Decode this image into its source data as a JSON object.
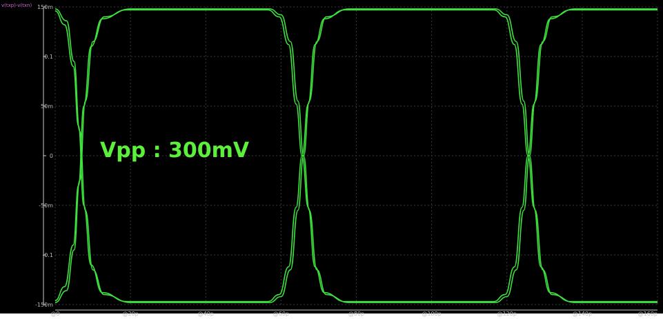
{
  "chart_data": {
    "type": "line",
    "title": "",
    "ylabel": "v(txp)-v(txn)",
    "xlabel": "",
    "xlim": [
      0,
      160
    ],
    "ylim": [
      -150,
      150
    ],
    "grid": true,
    "trace_color": "#3ee13e",
    "annotation": {
      "text": "Vpp : 300mV",
      "color": "#5cf03c"
    },
    "y_ticks": [
      {
        "value": 150,
        "label": "150m"
      },
      {
        "value": 100,
        "label": "0.1"
      },
      {
        "value": 50,
        "label": "50m"
      },
      {
        "value": 0,
        "label": "0"
      },
      {
        "value": -50,
        "label": "-50m"
      },
      {
        "value": -100,
        "label": "-0.1"
      },
      {
        "value": -150,
        "label": "-150m"
      }
    ],
    "x_ticks": [
      {
        "value": 0,
        "label": "@0"
      },
      {
        "value": 20,
        "label": "@20p"
      },
      {
        "value": 40,
        "label": "@40p"
      },
      {
        "value": 60,
        "label": "@60p"
      },
      {
        "value": 80,
        "label": "@80p"
      },
      {
        "value": 100,
        "label": "@100p"
      },
      {
        "value": 120,
        "label": "@120p"
      },
      {
        "value": 140,
        "label": "@140p"
      },
      {
        "value": 160,
        "label": "@160p"
      }
    ],
    "series": [
      {
        "x": [
          0,
          3,
          5,
          6.5,
          8,
          10,
          13,
          20,
          40,
          57,
          60,
          62.5,
          64.5,
          66,
          67.5,
          69.5,
          72,
          78,
          100,
          117,
          120,
          122.5,
          124.5,
          126,
          127.5,
          129.5,
          132,
          138,
          160
        ],
        "y": [
          148,
          136,
          95,
          25,
          -55,
          -115,
          -140,
          -148,
          -148,
          -148,
          -142,
          -115,
          -55,
          0,
          55,
          115,
          140,
          148,
          148,
          148,
          142,
          115,
          55,
          0,
          -55,
          -115,
          -140,
          -148,
          -148
        ]
      },
      {
        "x": [
          0,
          3,
          5,
          6.5,
          8,
          10,
          13,
          20,
          40,
          57,
          60,
          62.5,
          64.5,
          66,
          67.5,
          69.5,
          72,
          78,
          100,
          117,
          120,
          122.5,
          124.5,
          126,
          127.5,
          129.5,
          132,
          138,
          160
        ],
        "y": [
          -148,
          -136,
          -95,
          -25,
          55,
          115,
          140,
          148,
          148,
          148,
          142,
          115,
          55,
          0,
          -55,
          -115,
          -140,
          -148,
          -148,
          -148,
          -142,
          -115,
          -55,
          0,
          55,
          115,
          140,
          148,
          148
        ]
      },
      {
        "x": [
          0,
          2.5,
          4.8,
          6.2,
          7.6,
          9.5,
          12.5,
          19,
          40,
          56.5,
          59.5,
          62,
          64,
          65.6,
          67.2,
          69,
          71.5,
          77,
          100,
          116.5,
          119.5,
          122,
          124,
          125.6,
          127.2,
          129,
          131.5,
          137,
          160
        ],
        "y": [
          146,
          132,
          90,
          30,
          -50,
          -110,
          -138,
          -147,
          -147,
          -147,
          -140,
          -112,
          -52,
          0,
          52,
          112,
          138,
          147,
          147,
          147,
          140,
          112,
          52,
          0,
          -52,
          -112,
          -138,
          -147,
          -147
        ]
      },
      {
        "x": [
          0,
          2.5,
          4.8,
          6.2,
          7.6,
          9.5,
          12.5,
          19,
          40,
          56.5,
          59.5,
          62,
          64,
          65.6,
          67.2,
          69,
          71.5,
          77,
          100,
          116.5,
          119.5,
          122,
          124,
          125.6,
          127.2,
          129,
          131.5,
          137,
          160
        ],
        "y": [
          -146,
          -132,
          -90,
          -30,
          50,
          110,
          138,
          147,
          147,
          147,
          140,
          112,
          52,
          0,
          -52,
          -112,
          -138,
          -147,
          -147,
          -147,
          -140,
          -112,
          -52,
          0,
          52,
          112,
          138,
          147,
          147
        ]
      }
    ]
  }
}
